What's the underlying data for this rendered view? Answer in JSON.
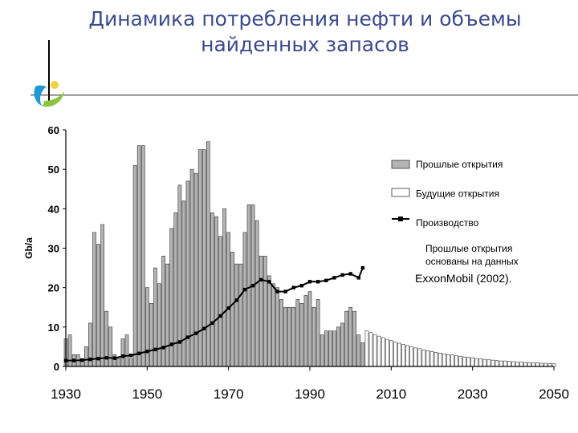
{
  "slide": {
    "title_line1": "Динамика потребления нефти и объемы",
    "title_line2": "найденных запасов"
  },
  "colors": {
    "title": "#3b4a8f",
    "past_bar_fill": "#b4b4b4",
    "future_bar_fill": "#ffffff",
    "bar_stroke": "#333333",
    "production_line": "#000000",
    "logo_blue": "#1e9ad6",
    "logo_green": "#8cc63f",
    "logo_yellow": "#f4d03f"
  },
  "chart_data": {
    "type": "bar",
    "title": "",
    "xlabel": "",
    "ylabel": "Gb/a",
    "xlim": [
      1930,
      2050
    ],
    "ylim": [
      0,
      60
    ],
    "y_ticks": [
      "0",
      "10",
      "20",
      "30",
      "40",
      "50",
      "60"
    ],
    "x_ticks": [
      "1930",
      "1950",
      "1970",
      "1990",
      "2010",
      "2030",
      "2050"
    ],
    "legend": {
      "placement": "top-right",
      "items": [
        "Прошлые открытия",
        "Будущие открытия",
        "Производство"
      ]
    },
    "note_lines": [
      "Прошлые открытия",
      "основаны на данных",
      "ExxonMobil (2002)."
    ],
    "series": [
      {
        "name": "Прошлые открытия",
        "kind": "bar",
        "x": [
          1930,
          1931,
          1932,
          1933,
          1934,
          1935,
          1936,
          1937,
          1938,
          1939,
          1940,
          1941,
          1942,
          1943,
          1944,
          1945,
          1946,
          1947,
          1948,
          1949,
          1950,
          1951,
          1952,
          1953,
          1954,
          1955,
          1956,
          1957,
          1958,
          1959,
          1960,
          1961,
          1962,
          1963,
          1964,
          1965,
          1966,
          1967,
          1968,
          1969,
          1970,
          1971,
          1972,
          1973,
          1974,
          1975,
          1976,
          1977,
          1978,
          1979,
          1980,
          1981,
          1982,
          1983,
          1984,
          1985,
          1986,
          1987,
          1988,
          1989,
          1990,
          1991,
          1992,
          1993,
          1994,
          1995,
          1996,
          1997,
          1998,
          1999,
          2000,
          2001,
          2002,
          2003
        ],
        "values": [
          7,
          8,
          3,
          3,
          2,
          5,
          11,
          34,
          31,
          36,
          14,
          10,
          3,
          2,
          7,
          8,
          2,
          51,
          56,
          56,
          20,
          16,
          25,
          21,
          28,
          26,
          35,
          39,
          46,
          42,
          47,
          50,
          49,
          55,
          55,
          57,
          39,
          38,
          33,
          40,
          34,
          29,
          26,
          26,
          34,
          41,
          41,
          37,
          28,
          28,
          23,
          21,
          20,
          17,
          15,
          15,
          15,
          17,
          16,
          18,
          19,
          15,
          17,
          8,
          9,
          9,
          9,
          10,
          11,
          14,
          15,
          14,
          8,
          6
        ]
      },
      {
        "name": "Будущие открытия",
        "kind": "bar",
        "x": [
          2004,
          2005,
          2006,
          2007,
          2008,
          2009,
          2010,
          2011,
          2012,
          2013,
          2014,
          2015,
          2016,
          2017,
          2018,
          2019,
          2020,
          2021,
          2022,
          2023,
          2024,
          2025,
          2026,
          2027,
          2028,
          2029,
          2030,
          2031,
          2032,
          2033,
          2034,
          2035,
          2036,
          2037,
          2038,
          2039,
          2040,
          2041,
          2042,
          2043,
          2044,
          2045,
          2046,
          2047,
          2048,
          2049,
          2050
        ],
        "values": [
          9,
          8.6,
          8.1,
          7.7,
          7.3,
          6.9,
          6.6,
          6.2,
          5.9,
          5.6,
          5.3,
          5.0,
          4.7,
          4.5,
          4.2,
          4.0,
          3.8,
          3.6,
          3.4,
          3.2,
          3.0,
          2.9,
          2.7,
          2.6,
          2.4,
          2.3,
          2.2,
          2.0,
          1.9,
          1.8,
          1.7,
          1.6,
          1.5,
          1.4,
          1.4,
          1.3,
          1.2,
          1.1,
          1.1,
          1.0,
          1.0,
          0.9,
          0.9,
          0.8,
          0.8,
          0.7,
          0.7
        ]
      },
      {
        "name": "Производство",
        "kind": "line",
        "x": [
          1930,
          1932,
          1934,
          1936,
          1938,
          1940,
          1942,
          1944,
          1946,
          1948,
          1950,
          1952,
          1954,
          1956,
          1958,
          1960,
          1962,
          1964,
          1966,
          1968,
          1970,
          1972,
          1974,
          1976,
          1978,
          1980,
          1982,
          1984,
          1986,
          1988,
          1990,
          1992,
          1994,
          1996,
          1998,
          2000,
          2002,
          2003
        ],
        "values": [
          1.5,
          1.5,
          1.6,
          1.8,
          2.0,
          2.2,
          2.1,
          2.6,
          2.8,
          3.3,
          3.8,
          4.3,
          4.8,
          5.6,
          6.2,
          7.4,
          8.4,
          9.6,
          11.0,
          12.8,
          14.8,
          16.8,
          19.5,
          20.5,
          22.0,
          21.5,
          19.0,
          19.0,
          20.0,
          20.5,
          21.5,
          21.5,
          21.8,
          22.5,
          23.2,
          23.5,
          22.5,
          25.0
        ]
      }
    ]
  }
}
